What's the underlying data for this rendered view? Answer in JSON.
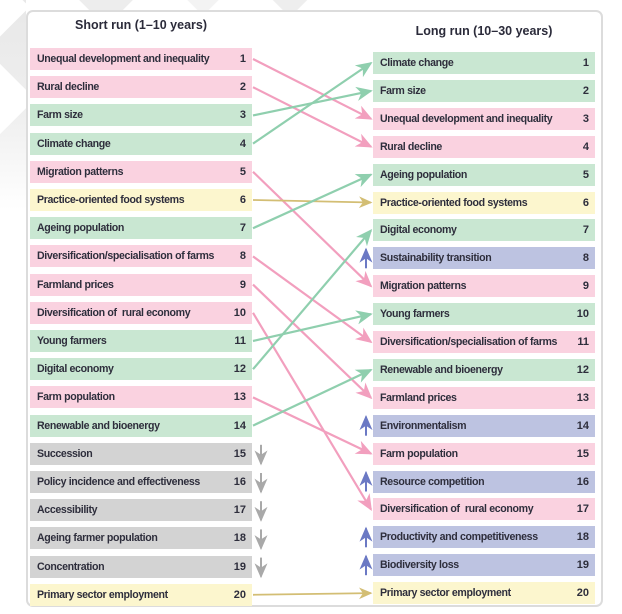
{
  "columns": {
    "short_run": {
      "title": "Short run (1–10 years)",
      "items": [
        {
          "rank": 1,
          "label": "Unequal development and inequality",
          "category": "pink"
        },
        {
          "rank": 2,
          "label": "Rural decline",
          "category": "pink"
        },
        {
          "rank": 3,
          "label": "Farm size",
          "category": "green"
        },
        {
          "rank": 4,
          "label": "Climate change",
          "category": "green"
        },
        {
          "rank": 5,
          "label": "Migration patterns",
          "category": "pink"
        },
        {
          "rank": 6,
          "label": "Practice-oriented food systems",
          "category": "yellow"
        },
        {
          "rank": 7,
          "label": "Ageing population",
          "category": "green"
        },
        {
          "rank": 8,
          "label": "Diversification/specialisation of farms",
          "category": "pink"
        },
        {
          "rank": 9,
          "label": "Farmland prices",
          "category": "pink"
        },
        {
          "rank": 10,
          "label": "Diversification of  rural economy",
          "category": "pink"
        },
        {
          "rank": 11,
          "label": "Young farmers",
          "category": "green"
        },
        {
          "rank": 12,
          "label": "Digital economy",
          "category": "green"
        },
        {
          "rank": 13,
          "label": "Farm population",
          "category": "pink"
        },
        {
          "rank": 14,
          "label": "Renewable and bioenergy",
          "category": "green"
        },
        {
          "rank": 15,
          "label": "Succession",
          "category": "gray",
          "trend": "exit"
        },
        {
          "rank": 16,
          "label": "Policy incidence and effectiveness",
          "category": "gray",
          "trend": "exit"
        },
        {
          "rank": 17,
          "label": "Accessibility",
          "category": "gray",
          "trend": "exit"
        },
        {
          "rank": 18,
          "label": "Ageing farmer population",
          "category": "gray",
          "trend": "exit"
        },
        {
          "rank": 19,
          "label": "Concentration",
          "category": "gray",
          "trend": "exit"
        },
        {
          "rank": 20,
          "label": "Primary sector employment",
          "category": "yellow"
        }
      ]
    },
    "long_run": {
      "title": "Long run (10–30 years)",
      "items": [
        {
          "rank": 1,
          "label": "Climate change",
          "category": "green"
        },
        {
          "rank": 2,
          "label": "Farm size",
          "category": "green"
        },
        {
          "rank": 3,
          "label": "Unequal development and inequality",
          "category": "pink"
        },
        {
          "rank": 4,
          "label": "Rural decline",
          "category": "pink"
        },
        {
          "rank": 5,
          "label": "Ageing population",
          "category": "green"
        },
        {
          "rank": 6,
          "label": "Practice-oriented food systems",
          "category": "yellow"
        },
        {
          "rank": 7,
          "label": "Digital economy",
          "category": "green"
        },
        {
          "rank": 8,
          "label": "Sustainability transition",
          "category": "purple",
          "trend": "entry"
        },
        {
          "rank": 9,
          "label": "Migration patterns",
          "category": "pink"
        },
        {
          "rank": 10,
          "label": "Young farmers",
          "category": "green"
        },
        {
          "rank": 11,
          "label": "Diversification/specialisation of farms",
          "category": "pink"
        },
        {
          "rank": 12,
          "label": "Renewable and bioenergy",
          "category": "green"
        },
        {
          "rank": 13,
          "label": "Farmland prices",
          "category": "pink"
        },
        {
          "rank": 14,
          "label": "Environmentalism",
          "category": "purple",
          "trend": "entry"
        },
        {
          "rank": 15,
          "label": "Farm population",
          "category": "pink"
        },
        {
          "rank": 16,
          "label": "Resource competition",
          "category": "purple",
          "trend": "entry"
        },
        {
          "rank": 17,
          "label": "Diversification of  rural economy",
          "category": "pink"
        },
        {
          "rank": 18,
          "label": "Productivity and competitiveness",
          "category": "purple",
          "trend": "entry"
        },
        {
          "rank": 19,
          "label": "Biodiversity loss",
          "category": "purple",
          "trend": "entry"
        },
        {
          "rank": 20,
          "label": "Primary sector employment",
          "category": "yellow"
        }
      ]
    }
  },
  "connections": [
    {
      "from": 1,
      "to": 3,
      "color": "pink"
    },
    {
      "from": 2,
      "to": 4,
      "color": "pink"
    },
    {
      "from": 3,
      "to": 2,
      "color": "green"
    },
    {
      "from": 4,
      "to": 1,
      "color": "green"
    },
    {
      "from": 5,
      "to": 9,
      "color": "pink"
    },
    {
      "from": 6,
      "to": 6,
      "color": "tan"
    },
    {
      "from": 7,
      "to": 5,
      "color": "green"
    },
    {
      "from": 8,
      "to": 11,
      "color": "pink"
    },
    {
      "from": 9,
      "to": 13,
      "color": "pink"
    },
    {
      "from": 10,
      "to": 17,
      "color": "pink"
    },
    {
      "from": 11,
      "to": 10,
      "color": "green"
    },
    {
      "from": 12,
      "to": 7,
      "color": "green"
    },
    {
      "from": 13,
      "to": 15,
      "color": "pink"
    },
    {
      "from": 14,
      "to": 12,
      "color": "green"
    },
    {
      "from": 20,
      "to": 20,
      "color": "tan"
    }
  ],
  "colors": {
    "categories": {
      "pink": "#FAD2E0",
      "green": "#C9E7D2",
      "yellow": "#FCF6CE",
      "gray": "#D3D3D3",
      "purple": "#BDC3E1"
    },
    "arrows": {
      "pink": "#F29FBE",
      "green": "#8FCFAE",
      "tan": "#D3BE74",
      "gray": "#A9A9A9",
      "purple": "#6B79C4"
    },
    "text": "#2E2E3C"
  }
}
